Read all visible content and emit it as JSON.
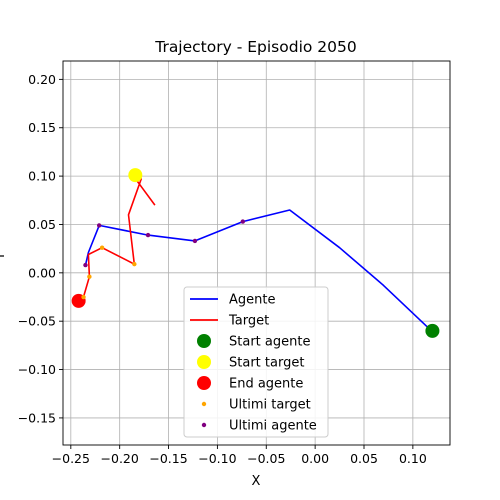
{
  "chart_data": {
    "type": "line",
    "title": "Trajectory - Episodio 2050",
    "xlabel": "X",
    "ylabel": "Y",
    "xlim": [
      -0.258,
      0.138
    ],
    "ylim": [
      -0.178,
      0.219
    ],
    "xticks": [
      -0.25,
      -0.2,
      -0.15,
      -0.1,
      -0.05,
      0.0,
      0.05,
      0.1
    ],
    "xtick_labels": [
      "−0.25",
      "−0.20",
      "−0.15",
      "−0.10",
      "−0.05",
      "0.00",
      "0.05",
      "0.10"
    ],
    "yticks": [
      -0.15,
      -0.1,
      -0.05,
      0.0,
      0.05,
      0.1,
      0.15,
      0.2
    ],
    "ytick_labels": [
      "−0.15",
      "−0.10",
      "−0.05",
      "0.00",
      "0.05",
      "0.10",
      "0.15",
      "0.20"
    ],
    "grid": true,
    "legend_position": "lower center",
    "series": [
      {
        "name": "Agente",
        "kind": "line",
        "color": "#0000ff",
        "points": [
          [
            0.118,
            -0.059
          ],
          [
            0.07,
            -0.013
          ],
          [
            0.025,
            0.026
          ],
          [
            -0.026,
            0.065
          ],
          [
            -0.074,
            0.053
          ],
          [
            -0.123,
            0.033
          ],
          [
            -0.171,
            0.039
          ],
          [
            -0.221,
            0.049
          ],
          [
            -0.232,
            0.021
          ],
          [
            -0.235,
            0.008
          ]
        ]
      },
      {
        "name": "Target",
        "kind": "line",
        "color": "#ff0000",
        "points": [
          [
            -0.164,
            0.07
          ],
          [
            -0.18,
            0.092
          ],
          [
            -0.187,
            0.101
          ],
          [
            -0.178,
            0.097
          ],
          [
            -0.191,
            0.06
          ],
          [
            -0.185,
            0.009
          ],
          [
            -0.218,
            0.026
          ],
          [
            -0.232,
            0.019
          ],
          [
            -0.231,
            -0.004
          ],
          [
            -0.237,
            -0.025
          ],
          [
            -0.24,
            -0.028
          ]
        ]
      },
      {
        "name": "Start agente",
        "kind": "marker",
        "color": "#008000",
        "size": 7,
        "points": [
          [
            0.12,
            -0.06
          ]
        ]
      },
      {
        "name": "Start target",
        "kind": "marker",
        "color": "#ffff00",
        "size": 7,
        "points": [
          [
            -0.184,
            0.101
          ]
        ]
      },
      {
        "name": "End agente",
        "kind": "marker",
        "color": "#ff0000",
        "size": 7,
        "points": [
          [
            -0.242,
            -0.029
          ]
        ]
      },
      {
        "name": "Ultimi target",
        "kind": "marker",
        "color": "#ffa500",
        "size": 2.2,
        "points": [
          [
            -0.185,
            0.009
          ],
          [
            -0.218,
            0.026
          ],
          [
            -0.231,
            -0.004
          ],
          [
            -0.237,
            -0.025
          ]
        ]
      },
      {
        "name": "Ultimi agente",
        "kind": "marker",
        "color": "#800080",
        "size": 2.2,
        "points": [
          [
            -0.123,
            0.033
          ],
          [
            -0.171,
            0.039
          ],
          [
            -0.221,
            0.049
          ],
          [
            -0.235,
            0.008
          ],
          [
            -0.074,
            0.053
          ]
        ]
      }
    ]
  }
}
